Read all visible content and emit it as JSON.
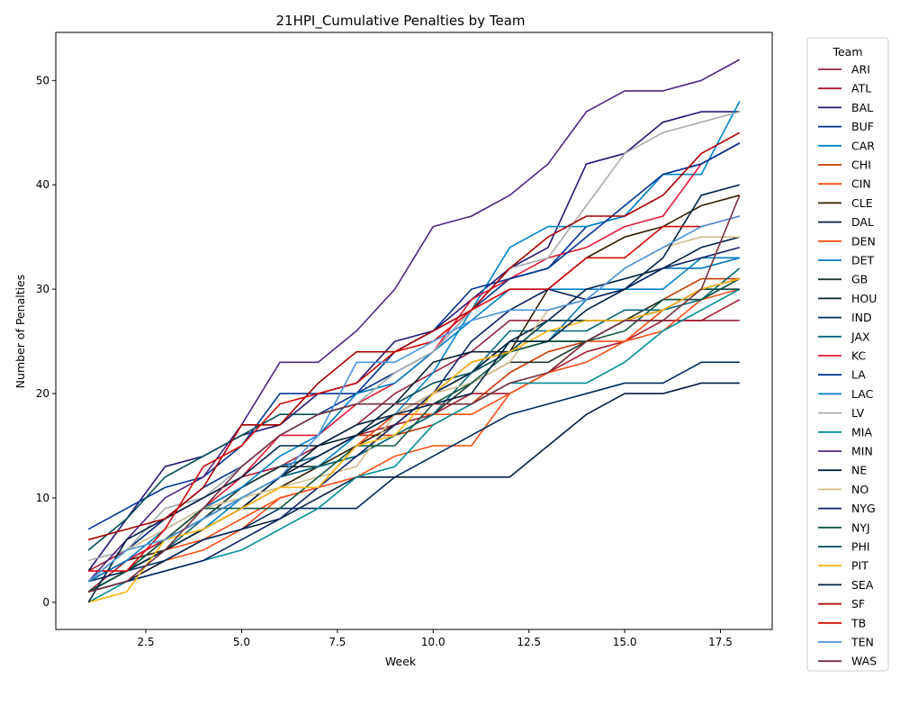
{
  "chart_data": {
    "type": "line",
    "title": "21HPI_Cumulative Penalties by Team",
    "xlabel": "Week",
    "ylabel": "Number of Penalties",
    "xlim": [
      0.15,
      18.85
    ],
    "ylim": [
      -2.6,
      54.6
    ],
    "xticks": [
      2.5,
      5.0,
      7.5,
      10.0,
      12.5,
      15.0,
      17.5
    ],
    "xtick_labels": [
      "2.5",
      "5.0",
      "7.5",
      "10.0",
      "12.5",
      "15.0",
      "17.5"
    ],
    "yticks": [
      0,
      10,
      20,
      30,
      40,
      50
    ],
    "ytick_labels": [
      "0",
      "10",
      "20",
      "30",
      "40",
      "50"
    ],
    "grid": false,
    "legend": {
      "title": "Team",
      "placement": "outside-right"
    },
    "x": [
      1,
      2,
      3,
      4,
      5,
      6,
      7,
      8,
      9,
      10,
      11,
      12,
      13,
      14,
      15,
      16,
      17,
      18
    ],
    "series": [
      {
        "name": "ARI",
        "color": "#97233f",
        "values": [
          1,
          4,
          6,
          9,
          11,
          13,
          15,
          17,
          20,
          22,
          24,
          27,
          27,
          27,
          27,
          27,
          27,
          27
        ]
      },
      {
        "name": "ATL",
        "color": "#a71930",
        "values": [
          3,
          5,
          8,
          10,
          12,
          13,
          14,
          16,
          17,
          18,
          20,
          20,
          22,
          24,
          25,
          27,
          27,
          29
        ]
      },
      {
        "name": "BAL",
        "color": "#241773",
        "values": [
          3,
          8,
          13,
          14,
          16,
          17,
          20,
          21,
          25,
          26,
          29,
          32,
          34,
          42,
          43,
          46,
          47,
          47
        ]
      },
      {
        "name": "BUF",
        "color": "#00338d",
        "values": [
          2,
          5,
          8,
          11,
          13,
          16,
          18,
          20,
          22,
          24,
          28,
          31,
          32,
          36,
          37,
          41,
          42,
          44
        ]
      },
      {
        "name": "CAR",
        "color": "#0085ca",
        "values": [
          1,
          3,
          5,
          7,
          10,
          12,
          13,
          16,
          18,
          22,
          28,
          34,
          36,
          36,
          37,
          41,
          41,
          48
        ]
      },
      {
        "name": "CHI",
        "color": "#c83803",
        "values": [
          2,
          4,
          6,
          8,
          10,
          12,
          14,
          16,
          16,
          17,
          19,
          22,
          24,
          25,
          27,
          29,
          31,
          31
        ]
      },
      {
        "name": "CIN",
        "color": "#fb4f14",
        "values": [
          1,
          2,
          4,
          5,
          7,
          10,
          11,
          12,
          14,
          15,
          15,
          20,
          22,
          23,
          25,
          26,
          29,
          30
        ]
      },
      {
        "name": "CLE",
        "color": "#311d00",
        "values": [
          2,
          4,
          5,
          7,
          9,
          11,
          13,
          15,
          17,
          20,
          23,
          24,
          30,
          33,
          35,
          36,
          38,
          39
        ]
      },
      {
        "name": "DAL",
        "color": "#041e42",
        "values": [
          1,
          2,
          4,
          6,
          7,
          8,
          10,
          12,
          12,
          12,
          12,
          12,
          15,
          18,
          20,
          20,
          21,
          21
        ]
      },
      {
        "name": "DEN",
        "color": "#fb4f14",
        "values": [
          1,
          3,
          5,
          6,
          8,
          10,
          11,
          15,
          18,
          18,
          18,
          20,
          22,
          25,
          25,
          28,
          30,
          30
        ]
      },
      {
        "name": "DET",
        "color": "#0076b6",
        "values": [
          2,
          4,
          6,
          8,
          11,
          13,
          14,
          16,
          18,
          20,
          22,
          25,
          25,
          29,
          30,
          32,
          32,
          33
        ]
      },
      {
        "name": "GB",
        "color": "#203731",
        "values": [
          1,
          3,
          6,
          8,
          11,
          13,
          13,
          14,
          16,
          18,
          21,
          23,
          23,
          25,
          27,
          29,
          29,
          31
        ]
      },
      {
        "name": "HOU",
        "color": "#03202f",
        "values": [
          1,
          3,
          5,
          7,
          9,
          12,
          15,
          16,
          19,
          23,
          24,
          24,
          25,
          25,
          27,
          28,
          30,
          31
        ]
      },
      {
        "name": "IND",
        "color": "#002c5f",
        "values": [
          2,
          3,
          4,
          6,
          7,
          9,
          9,
          9,
          12,
          14,
          16,
          18,
          19,
          20,
          21,
          21,
          23,
          23
        ]
      },
      {
        "name": "JAX",
        "color": "#006778",
        "values": [
          1,
          3,
          5,
          8,
          10,
          12,
          13,
          14,
          16,
          18,
          22,
          26,
          26,
          26,
          28,
          28,
          29,
          32
        ]
      },
      {
        "name": "KC",
        "color": "#e31837",
        "values": [
          2,
          4,
          6,
          9,
          12,
          16,
          16,
          19,
          21,
          24,
          29,
          31,
          33,
          34,
          36,
          37,
          42,
          44
        ]
      },
      {
        "name": "LA",
        "color": "#003594",
        "values": [
          7,
          9,
          11,
          12,
          15,
          20,
          20,
          20,
          24,
          26,
          30,
          31,
          32,
          35,
          38,
          41,
          42,
          44
        ]
      },
      {
        "name": "LAC",
        "color": "#0080c6",
        "values": [
          2,
          4,
          7,
          9,
          11,
          14,
          16,
          20,
          21,
          24,
          27,
          30,
          30,
          30,
          30,
          30,
          33,
          33
        ]
      },
      {
        "name": "LV",
        "color": "#a5acaf",
        "values": [
          4,
          5,
          9,
          10,
          13,
          16,
          18,
          19,
          22,
          24,
          28,
          32,
          33,
          38,
          43,
          45,
          46,
          47
        ]
      },
      {
        "name": "MIA",
        "color": "#008e97",
        "values": [
          0,
          2,
          3,
          4,
          5,
          7,
          9,
          12,
          13,
          17,
          19,
          21,
          21,
          21,
          23,
          26,
          28,
          30
        ]
      },
      {
        "name": "MIN",
        "color": "#4f2683",
        "values": [
          2,
          6,
          10,
          12,
          17,
          23,
          23,
          26,
          30,
          36,
          37,
          39,
          42,
          47,
          49,
          49,
          50,
          52
        ]
      },
      {
        "name": "NE",
        "color": "#002244",
        "values": [
          1,
          3,
          5,
          7,
          9,
          12,
          14,
          16,
          18,
          20,
          22,
          25,
          27,
          30,
          31,
          32,
          34,
          35
        ]
      },
      {
        "name": "NO",
        "color": "#d3bc8d",
        "values": [
          2,
          5,
          7,
          9,
          10,
          11,
          12,
          13,
          18,
          20,
          21,
          23,
          28,
          29,
          32,
          34,
          35,
          35
        ]
      },
      {
        "name": "NYG",
        "color": "#0b2265",
        "values": [
          1,
          2,
          3,
          4,
          6,
          8,
          11,
          14,
          17,
          20,
          25,
          28,
          30,
          29,
          30,
          32,
          33,
          34
        ]
      },
      {
        "name": "NYJ",
        "color": "#125740",
        "values": [
          1,
          3,
          6,
          9,
          9,
          9,
          12,
          15,
          15,
          19,
          21,
          24,
          25,
          25,
          26,
          29,
          29,
          31
        ]
      },
      {
        "name": "PHI",
        "color": "#004c54",
        "values": [
          5,
          8,
          12,
          14,
          16,
          18,
          18,
          19,
          19,
          21,
          22,
          24,
          27,
          27,
          27,
          28,
          30,
          30
        ]
      },
      {
        "name": "PIT",
        "color": "#ffb612",
        "values": [
          0,
          1,
          6,
          7,
          9,
          11,
          11,
          15,
          16,
          20,
          23,
          24,
          26,
          27,
          27,
          28,
          30,
          31
        ]
      },
      {
        "name": "SEA",
        "color": "#002244",
        "values": [
          0,
          6,
          8,
          10,
          12,
          15,
          15,
          17,
          18,
          19,
          20,
          25,
          25,
          28,
          30,
          33,
          39,
          40
        ]
      },
      {
        "name": "SF",
        "color": "#aa0000",
        "values": [
          6,
          7,
          8,
          11,
          17,
          17,
          21,
          24,
          24,
          26,
          28,
          32,
          35,
          37,
          37,
          39,
          43,
          45
        ]
      },
      {
        "name": "TB",
        "color": "#d50a0a",
        "values": [
          3,
          3,
          7,
          13,
          15,
          19,
          20,
          21,
          24,
          25,
          28,
          30,
          30,
          33,
          33,
          36,
          36,
          37
        ]
      },
      {
        "name": "TEN",
        "color": "#4b92db",
        "values": [
          2,
          5,
          6,
          8,
          10,
          12,
          16,
          23,
          23,
          25,
          27,
          28,
          28,
          29,
          32,
          34,
          36,
          37
        ]
      },
      {
        "name": "WAS",
        "color": "#773141",
        "values": [
          1,
          2,
          5,
          9,
          13,
          16,
          18,
          19,
          19,
          19,
          19,
          21,
          22,
          25,
          27,
          27,
          30,
          39
        ]
      }
    ]
  }
}
